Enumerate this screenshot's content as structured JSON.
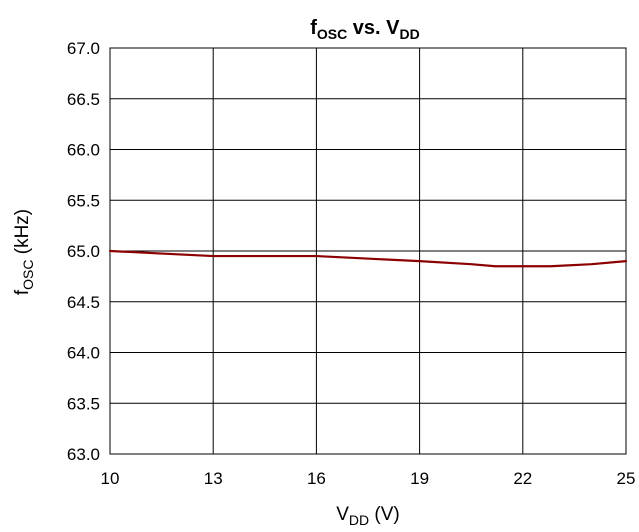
{
  "colors": {
    "series": "#8b0000",
    "grid": "#000000",
    "background": "#ffffff"
  },
  "chart_data": {
    "type": "line",
    "title": {
      "main": "f",
      "main_sub": "OSC",
      "mid": " vs. V",
      "mid_sub": "DD"
    },
    "xlabel": {
      "main": "V",
      "sub": "DD",
      "tail": " (V)"
    },
    "ylabel": {
      "main": "f",
      "sub": "OSC",
      "tail": " (kHz)"
    },
    "xlim": [
      10,
      25
    ],
    "ylim": [
      63.0,
      67.0
    ],
    "xticks": [
      10,
      13,
      16,
      19,
      22,
      25
    ],
    "xtick_labels": [
      "10",
      "13",
      "16",
      "19",
      "22",
      "25"
    ],
    "yticks": [
      63.0,
      63.5,
      64.0,
      64.5,
      65.0,
      65.5,
      66.0,
      66.5,
      67.0
    ],
    "ytick_labels": [
      "63.0",
      "63.5",
      "64.0",
      "64.5",
      "65.0",
      "65.5",
      "66.0",
      "66.5",
      "67.0"
    ],
    "grid": true,
    "series": [
      {
        "color": "#8b0000",
        "x": [
          10,
          13,
          14.5,
          16,
          19,
          20.5,
          21.2,
          22.8,
          24,
          25
        ],
        "y": [
          65.0,
          64.95,
          64.95,
          64.95,
          64.9,
          64.87,
          64.85,
          64.85,
          64.87,
          64.9
        ]
      }
    ]
  }
}
